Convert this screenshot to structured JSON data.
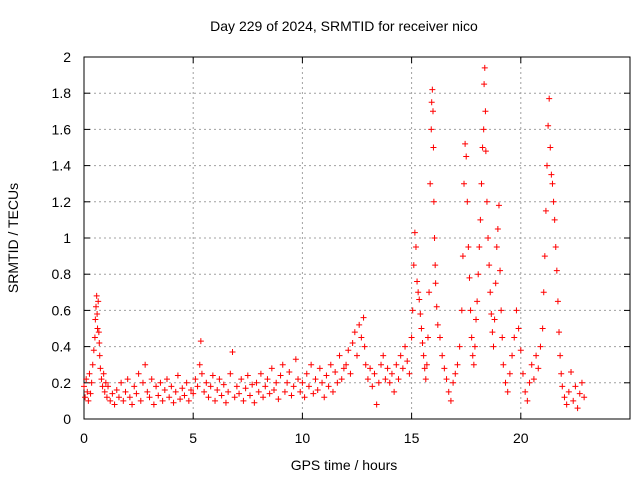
{
  "chart_data": {
    "type": "scatter",
    "title": "Day 229 of 2024, SRMTID for receiver nico",
    "xlabel": "GPS time / hours",
    "ylabel": "SRMTID / TECUs",
    "xlim": [
      0,
      25
    ],
    "ylim": [
      0,
      2
    ],
    "xticks": [
      0,
      5,
      10,
      15,
      20
    ],
    "xtick_labels": [
      "0",
      "5",
      "10",
      "15",
      "20"
    ],
    "yticks": [
      0,
      0.2,
      0.4,
      0.6,
      0.8,
      1.0,
      1.2,
      1.4,
      1.6,
      1.8,
      2.0
    ],
    "ytick_labels": [
      "0",
      "0.2",
      "0.4",
      "0.6",
      "0.8",
      "1",
      "1.2",
      "1.4",
      "1.6",
      "1.8",
      "2"
    ],
    "grid": true,
    "marker": "+",
    "series": [
      {
        "name": "SRMTID",
        "color": "#ff0000",
        "points": [
          [
            0.0,
            0.18
          ],
          [
            0.05,
            0.12
          ],
          [
            0.1,
            0.22
          ],
          [
            0.15,
            0.15
          ],
          [
            0.2,
            0.1
          ],
          [
            0.25,
            0.25
          ],
          [
            0.3,
            0.14
          ],
          [
            0.35,
            0.2
          ],
          [
            0.4,
            0.3
          ],
          [
            0.45,
            0.38
          ],
          [
            0.5,
            0.45
          ],
          [
            0.52,
            0.55
          ],
          [
            0.55,
            0.62
          ],
          [
            0.58,
            0.68
          ],
          [
            0.6,
            0.58
          ],
          [
            0.62,
            0.5
          ],
          [
            0.65,
            0.65
          ],
          [
            0.68,
            0.48
          ],
          [
            0.7,
            0.42
          ],
          [
            0.72,
            0.35
          ],
          [
            0.75,
            0.28
          ],
          [
            0.8,
            0.22
          ],
          [
            0.85,
            0.18
          ],
          [
            0.9,
            0.25
          ],
          [
            0.95,
            0.15
          ],
          [
            1.0,
            0.2
          ],
          [
            1.05,
            0.12
          ],
          [
            1.1,
            0.18
          ],
          [
            1.2,
            0.1
          ],
          [
            1.3,
            0.14
          ],
          [
            1.4,
            0.08
          ],
          [
            1.5,
            0.16
          ],
          [
            1.6,
            0.12
          ],
          [
            1.7,
            0.2
          ],
          [
            1.8,
            0.1
          ],
          [
            1.9,
            0.15
          ],
          [
            2.0,
            0.22
          ],
          [
            2.1,
            0.12
          ],
          [
            2.2,
            0.08
          ],
          [
            2.3,
            0.18
          ],
          [
            2.4,
            0.14
          ],
          [
            2.5,
            0.25
          ],
          [
            2.6,
            0.1
          ],
          [
            2.7,
            0.2
          ],
          [
            2.8,
            0.3
          ],
          [
            2.9,
            0.15
          ],
          [
            3.0,
            0.12
          ],
          [
            3.1,
            0.22
          ],
          [
            3.2,
            0.08
          ],
          [
            3.3,
            0.18
          ],
          [
            3.4,
            0.13
          ],
          [
            3.5,
            0.2
          ],
          [
            3.6,
            0.1
          ],
          [
            3.7,
            0.16
          ],
          [
            3.8,
            0.22
          ],
          [
            3.9,
            0.12
          ],
          [
            4.0,
            0.18
          ],
          [
            4.1,
            0.09
          ],
          [
            4.2,
            0.15
          ],
          [
            4.3,
            0.24
          ],
          [
            4.4,
            0.11
          ],
          [
            4.5,
            0.17
          ],
          [
            4.6,
            0.13
          ],
          [
            4.7,
            0.2
          ],
          [
            4.8,
            0.1
          ],
          [
            4.9,
            0.16
          ],
          [
            5.0,
            0.14
          ],
          [
            5.1,
            0.22
          ],
          [
            5.2,
            0.18
          ],
          [
            5.3,
            0.3
          ],
          [
            5.35,
            0.43
          ],
          [
            5.4,
            0.25
          ],
          [
            5.5,
            0.15
          ],
          [
            5.6,
            0.2
          ],
          [
            5.7,
            0.12
          ],
          [
            5.8,
            0.18
          ],
          [
            5.9,
            0.24
          ],
          [
            6.0,
            0.1
          ],
          [
            6.1,
            0.16
          ],
          [
            6.2,
            0.22
          ],
          [
            6.3,
            0.13
          ],
          [
            6.4,
            0.19
          ],
          [
            6.5,
            0.09
          ],
          [
            6.6,
            0.15
          ],
          [
            6.7,
            0.25
          ],
          [
            6.8,
            0.37
          ],
          [
            6.9,
            0.12
          ],
          [
            7.0,
            0.18
          ],
          [
            7.1,
            0.14
          ],
          [
            7.2,
            0.22
          ],
          [
            7.3,
            0.1
          ],
          [
            7.4,
            0.17
          ],
          [
            7.5,
            0.24
          ],
          [
            7.6,
            0.13
          ],
          [
            7.7,
            0.19
          ],
          [
            7.8,
            0.09
          ],
          [
            7.9,
            0.2
          ],
          [
            8.0,
            0.15
          ],
          [
            8.1,
            0.25
          ],
          [
            8.2,
            0.12
          ],
          [
            8.3,
            0.18
          ],
          [
            8.4,
            0.22
          ],
          [
            8.5,
            0.14
          ],
          [
            8.6,
            0.28
          ],
          [
            8.7,
            0.16
          ],
          [
            8.8,
            0.2
          ],
          [
            8.9,
            0.11
          ],
          [
            9.0,
            0.24
          ],
          [
            9.1,
            0.3
          ],
          [
            9.2,
            0.15
          ],
          [
            9.3,
            0.2
          ],
          [
            9.4,
            0.26
          ],
          [
            9.5,
            0.13
          ],
          [
            9.6,
            0.18
          ],
          [
            9.7,
            0.33
          ],
          [
            9.8,
            0.22
          ],
          [
            9.9,
            0.15
          ],
          [
            10.0,
            0.2
          ],
          [
            10.1,
            0.12
          ],
          [
            10.2,
            0.25
          ],
          [
            10.3,
            0.18
          ],
          [
            10.4,
            0.3
          ],
          [
            10.5,
            0.14
          ],
          [
            10.6,
            0.22
          ],
          [
            10.7,
            0.16
          ],
          [
            10.8,
            0.28
          ],
          [
            10.9,
            0.2
          ],
          [
            11.0,
            0.12
          ],
          [
            11.1,
            0.24
          ],
          [
            11.2,
            0.18
          ],
          [
            11.3,
            0.3
          ],
          [
            11.4,
            0.15
          ],
          [
            11.5,
            0.26
          ],
          [
            11.6,
            0.2
          ],
          [
            11.7,
            0.35
          ],
          [
            11.8,
            0.22
          ],
          [
            11.9,
            0.28
          ],
          [
            12.0,
            0.3
          ],
          [
            12.1,
            0.38
          ],
          [
            12.2,
            0.25
          ],
          [
            12.3,
            0.42
          ],
          [
            12.4,
            0.48
          ],
          [
            12.5,
            0.35
          ],
          [
            12.6,
            0.52
          ],
          [
            12.7,
            0.45
          ],
          [
            12.8,
            0.56
          ],
          [
            12.85,
            0.4
          ],
          [
            12.9,
            0.3
          ],
          [
            13.0,
            0.22
          ],
          [
            13.1,
            0.28
          ],
          [
            13.2,
            0.18
          ],
          [
            13.3,
            0.25
          ],
          [
            13.4,
            0.08
          ],
          [
            13.5,
            0.2
          ],
          [
            13.6,
            0.3
          ],
          [
            13.7,
            0.35
          ],
          [
            13.8,
            0.22
          ],
          [
            13.9,
            0.28
          ],
          [
            14.0,
            0.2
          ],
          [
            14.1,
            0.25
          ],
          [
            14.2,
            0.15
          ],
          [
            14.3,
            0.3
          ],
          [
            14.4,
            0.22
          ],
          [
            14.5,
            0.35
          ],
          [
            14.6,
            0.28
          ],
          [
            14.7,
            0.4
          ],
          [
            14.8,
            0.32
          ],
          [
            14.9,
            0.25
          ],
          [
            15.0,
            0.45
          ],
          [
            15.05,
            0.6
          ],
          [
            15.1,
            0.85
          ],
          [
            15.15,
            1.03
          ],
          [
            15.2,
            0.95
          ],
          [
            15.25,
            0.76
          ],
          [
            15.3,
            0.7
          ],
          [
            15.35,
            0.66
          ],
          [
            15.4,
            0.58
          ],
          [
            15.45,
            0.5
          ],
          [
            15.5,
            0.42
          ],
          [
            15.55,
            0.35
          ],
          [
            15.6,
            0.28
          ],
          [
            15.65,
            0.22
          ],
          [
            15.7,
            0.3
          ],
          [
            15.75,
            0.45
          ],
          [
            15.8,
            0.7
          ],
          [
            15.85,
            1.3
          ],
          [
            15.9,
            1.6
          ],
          [
            15.92,
            1.75
          ],
          [
            15.95,
            1.82
          ],
          [
            15.98,
            1.7
          ],
          [
            16.0,
            1.5
          ],
          [
            16.02,
            1.2
          ],
          [
            16.05,
            1.0
          ],
          [
            16.08,
            0.85
          ],
          [
            16.1,
            0.75
          ],
          [
            16.15,
            0.62
          ],
          [
            16.2,
            0.52
          ],
          [
            16.3,
            0.45
          ],
          [
            16.4,
            0.35
          ],
          [
            16.5,
            0.28
          ],
          [
            16.6,
            0.22
          ],
          [
            16.7,
            0.15
          ],
          [
            16.8,
            0.1
          ],
          [
            16.9,
            0.2
          ],
          [
            17.0,
            0.25
          ],
          [
            17.1,
            0.3
          ],
          [
            17.2,
            0.4
          ],
          [
            17.3,
            0.6
          ],
          [
            17.35,
            0.9
          ],
          [
            17.4,
            1.3
          ],
          [
            17.45,
            1.52
          ],
          [
            17.5,
            1.45
          ],
          [
            17.55,
            1.2
          ],
          [
            17.6,
            0.95
          ],
          [
            17.65,
            0.78
          ],
          [
            17.7,
            0.6
          ],
          [
            17.75,
            0.45
          ],
          [
            17.8,
            0.35
          ],
          [
            17.85,
            0.3
          ],
          [
            17.9,
            0.4
          ],
          [
            17.95,
            0.55
          ],
          [
            18.0,
            0.65
          ],
          [
            18.05,
            0.8
          ],
          [
            18.1,
            0.95
          ],
          [
            18.15,
            1.1
          ],
          [
            18.2,
            1.3
          ],
          [
            18.25,
            1.5
          ],
          [
            18.3,
            1.6
          ],
          [
            18.32,
            1.85
          ],
          [
            18.35,
            1.94
          ],
          [
            18.38,
            1.7
          ],
          [
            18.4,
            1.48
          ],
          [
            18.45,
            1.2
          ],
          [
            18.5,
            1.0
          ],
          [
            18.55,
            0.85
          ],
          [
            18.6,
            0.7
          ],
          [
            18.65,
            0.58
          ],
          [
            18.7,
            0.48
          ],
          [
            18.75,
            0.4
          ],
          [
            18.8,
            0.55
          ],
          [
            18.85,
            0.75
          ],
          [
            18.9,
            0.95
          ],
          [
            18.95,
            1.05
          ],
          [
            19.0,
            1.18
          ],
          [
            19.05,
            0.82
          ],
          [
            19.1,
            0.6
          ],
          [
            19.15,
            0.45
          ],
          [
            19.2,
            0.3
          ],
          [
            19.3,
            0.2
          ],
          [
            19.4,
            0.15
          ],
          [
            19.5,
            0.25
          ],
          [
            19.6,
            0.35
          ],
          [
            19.7,
            0.45
          ],
          [
            19.8,
            0.6
          ],
          [
            19.9,
            0.5
          ],
          [
            20.0,
            0.38
          ],
          [
            20.1,
            0.25
          ],
          [
            20.2,
            0.15
          ],
          [
            20.3,
            0.1
          ],
          [
            20.4,
            0.2
          ],
          [
            20.5,
            0.3
          ],
          [
            20.6,
            0.22
          ],
          [
            20.7,
            0.35
          ],
          [
            20.8,
            0.28
          ],
          [
            20.9,
            0.4
          ],
          [
            21.0,
            0.5
          ],
          [
            21.05,
            0.7
          ],
          [
            21.1,
            0.9
          ],
          [
            21.15,
            1.15
          ],
          [
            21.2,
            1.4
          ],
          [
            21.25,
            1.62
          ],
          [
            21.3,
            1.77
          ],
          [
            21.35,
            1.5
          ],
          [
            21.4,
            1.35
          ],
          [
            21.45,
            1.3
          ],
          [
            21.5,
            1.2
          ],
          [
            21.55,
            1.1
          ],
          [
            21.6,
            0.95
          ],
          [
            21.65,
            0.82
          ],
          [
            21.7,
            0.65
          ],
          [
            21.75,
            0.48
          ],
          [
            21.8,
            0.35
          ],
          [
            21.85,
            0.25
          ],
          [
            21.9,
            0.18
          ],
          [
            22.0,
            0.12
          ],
          [
            22.1,
            0.08
          ],
          [
            22.2,
            0.15
          ],
          [
            22.3,
            0.26
          ],
          [
            22.4,
            0.1
          ],
          [
            22.5,
            0.18
          ],
          [
            22.6,
            0.06
          ],
          [
            22.7,
            0.14
          ],
          [
            22.8,
            0.2
          ],
          [
            22.9,
            0.12
          ]
        ]
      }
    ]
  }
}
